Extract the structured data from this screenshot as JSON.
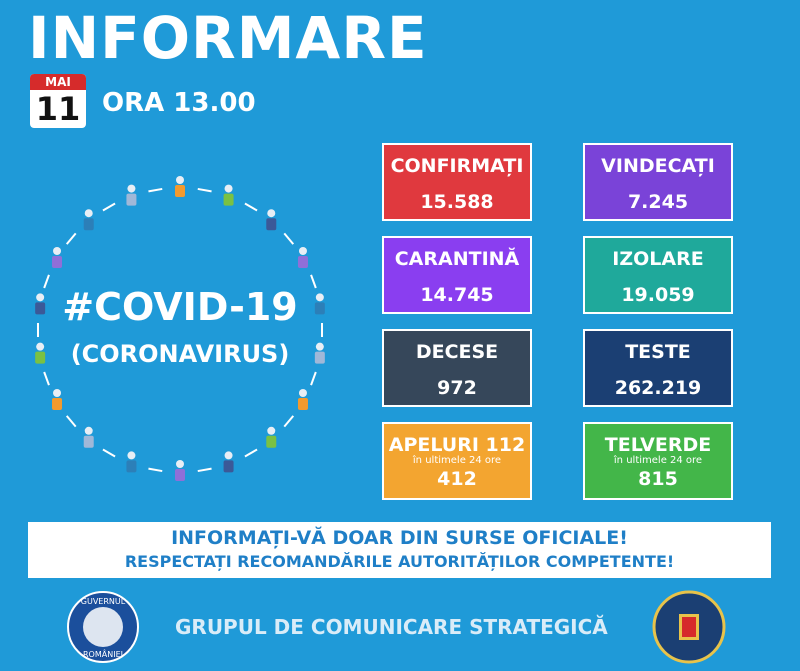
{
  "header": {
    "title": "INFORMARE",
    "month": "MAI",
    "day": "11",
    "time": "ORA 13.00"
  },
  "emblem": {
    "hashtag": "#COVID-19",
    "subtitle": "(CORONAVIRUS)"
  },
  "cards": [
    {
      "title": "CONFIRMAȚI",
      "value": "15.588"
    },
    {
      "title": "VINDECAȚI",
      "value": "7.245"
    },
    {
      "title": "CARANTINĂ",
      "value": "14.745"
    },
    {
      "title": "IZOLARE",
      "value": "19.059"
    },
    {
      "title": "DECESE",
      "value": "972"
    },
    {
      "title": "TESTE",
      "value": "262.219"
    },
    {
      "title": "APELURI 112",
      "note": "în ultimele 24 ore",
      "value": "412"
    },
    {
      "title": "TELVERDE",
      "note": "în ultimele 24 ore",
      "value": "815"
    }
  ],
  "banner": {
    "line1": "INFORMAȚI-VĂ DOAR DIN SURSE OFICIALE!",
    "line2": "RESPECTAȚI RECOMANDĂRILE AUTORITĂȚILOR COMPETENTE!"
  },
  "footer": {
    "text": "GRUPUL DE COMUNICARE STRATEGICĂ",
    "seal_top": "GUVERNUL",
    "seal_bottom": "ROMÂNIEI"
  }
}
